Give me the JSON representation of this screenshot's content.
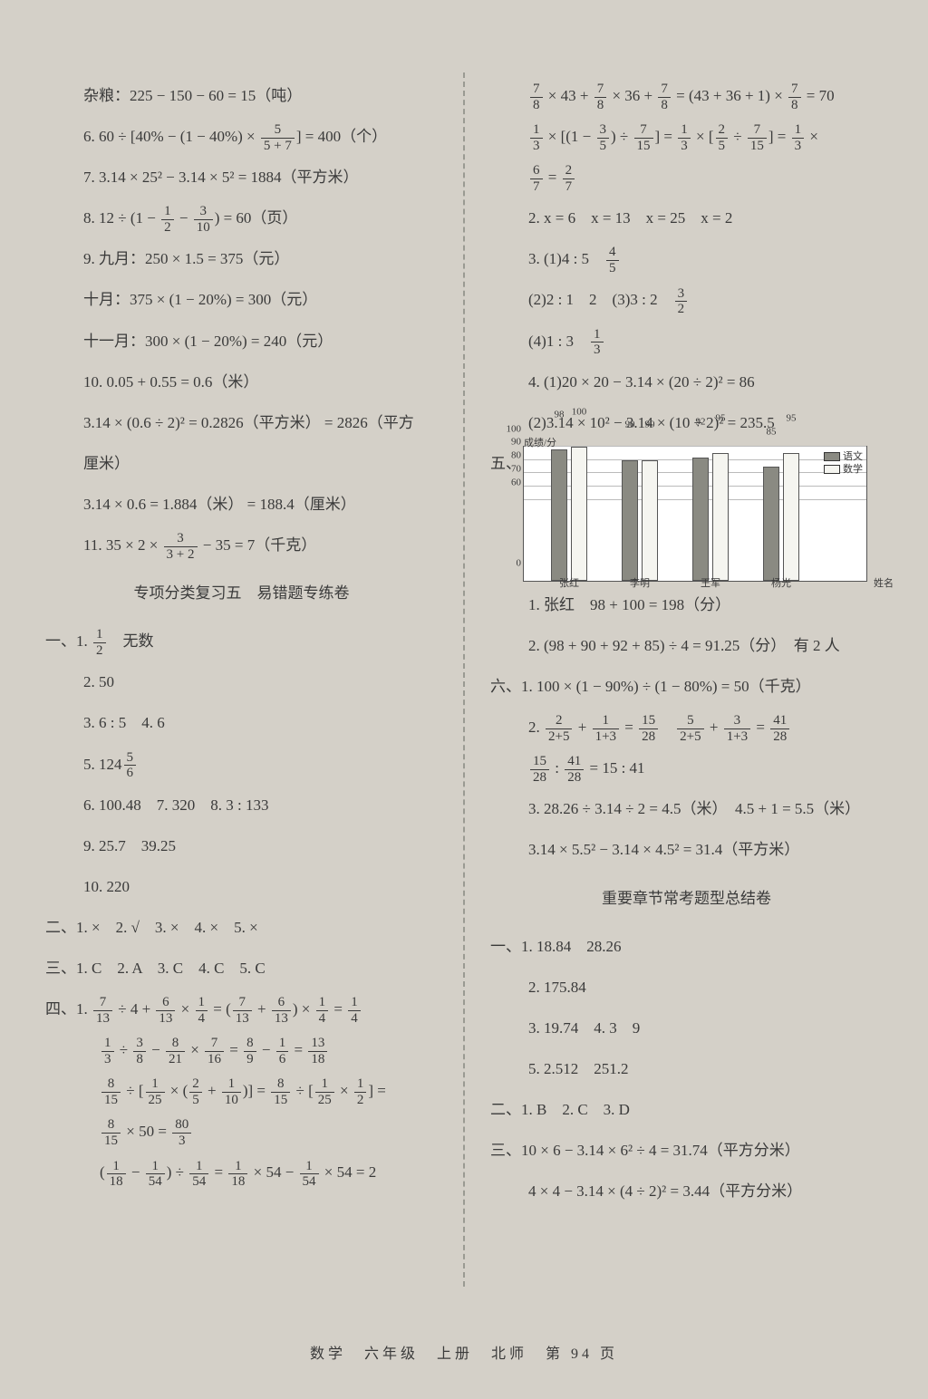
{
  "left": {
    "l01": "杂粮：225 − 150 − 60 = 15（吨）",
    "l02a": "6. 60 ÷ [40% − (1 − 40%) × ",
    "l02f": {
      "n": "5",
      "d": "5 + 7"
    },
    "l02b": "] = 400（个）",
    "l03": "7. 3.14 × 25² − 3.14 × 5² = 1884（平方米）",
    "l04a": "8. 12 ÷ (1 − ",
    "l04f1": {
      "n": "1",
      "d": "2"
    },
    "l04m": " − ",
    "l04f2": {
      "n": "3",
      "d": "10"
    },
    "l04b": ") = 60（页）",
    "l05": "9. 九月：250 × 1.5 = 375（元）",
    "l06": "十月：375 × (1 − 20%) = 300（元）",
    "l07": "十一月：300 × (1 − 20%) = 240（元）",
    "l08": "10. 0.05 + 0.55 = 0.6（米）",
    "l09": "3.14 × (0.6 ÷ 2)² = 0.2826（平方米） = 2826（平方",
    "l09b": "厘米）",
    "l10": "3.14 × 0.6 = 1.884（米） = 188.4（厘米）",
    "l11a": "11. 35 × 2 × ",
    "l11f": {
      "n": "3",
      "d": "3 + 2"
    },
    "l11b": " − 35 = 7（千克）",
    "title1": "专项分类复习五　易错题专练卷",
    "s1a": "一、1. ",
    "s1f": {
      "n": "1",
      "d": "2"
    },
    "s1b": "　无数",
    "s2": "2. 50",
    "s3": "3. 6 : 5　4. 6",
    "s5a": "5. 124",
    "s5f": {
      "n": "5",
      "d": "6"
    },
    "s6": "6. 100.48　7. 320　8. 3 : 133",
    "s9": "9. 25.7　39.25",
    "s10": "10. 220",
    "r2": "二、1. ×　2. √　3. ×　4. ×　5. ×",
    "r3": "三、1. C　2. A　3. C　4. C　5. C",
    "r4a": "四、1. ",
    "r4f1": {
      "n": "7",
      "d": "13"
    },
    "r4m1": " ÷ 4 + ",
    "r4f2": {
      "n": "6",
      "d": "13"
    },
    "r4m2": " × ",
    "r4f3": {
      "n": "1",
      "d": "4"
    },
    "r4m3": " = (",
    "r4f4": {
      "n": "7",
      "d": "13"
    },
    "r4m4": " + ",
    "r4f5": {
      "n": "6",
      "d": "13"
    },
    "r4m5": ") × ",
    "r4f6": {
      "n": "1",
      "d": "4"
    },
    "r4m6": " = ",
    "r4f7": {
      "n": "1",
      "d": "4"
    },
    "r5f1": {
      "n": "1",
      "d": "3"
    },
    "r5m1": " ÷ ",
    "r5f2": {
      "n": "3",
      "d": "8"
    },
    "r5m2": " − ",
    "r5f3": {
      "n": "8",
      "d": "21"
    },
    "r5m3": " × ",
    "r5f4": {
      "n": "7",
      "d": "16"
    },
    "r5m4": " = ",
    "r5f5": {
      "n": "8",
      "d": "9"
    },
    "r5m5": " − ",
    "r5f6": {
      "n": "1",
      "d": "6"
    },
    "r5m6": " = ",
    "r5f7": {
      "n": "13",
      "d": "18"
    },
    "r6f1": {
      "n": "8",
      "d": "15"
    },
    "r6m1": " ÷ [",
    "r6f2": {
      "n": "1",
      "d": "25"
    },
    "r6m2": " × (",
    "r6f3": {
      "n": "2",
      "d": "5"
    },
    "r6m3": " + ",
    "r6f4": {
      "n": "1",
      "d": "10"
    },
    "r6m4": ")] = ",
    "r6f5": {
      "n": "8",
      "d": "15"
    },
    "r6m5": " ÷ [",
    "r6f6": {
      "n": "1",
      "d": "25"
    },
    "r6m6": " × ",
    "r6f7": {
      "n": "1",
      "d": "2"
    },
    "r6m7": "] =",
    "r7f1": {
      "n": "8",
      "d": "15"
    },
    "r7m1": " × 50 = ",
    "r7f2": {
      "n": "80",
      "d": "3"
    },
    "r8m0": "(",
    "r8f1": {
      "n": "1",
      "d": "18"
    },
    "r8m1": " − ",
    "r8f2": {
      "n": "1",
      "d": "54"
    },
    "r8m2": ") ÷ ",
    "r8f3": {
      "n": "1",
      "d": "54"
    },
    "r8m3": " = ",
    "r8f4": {
      "n": "1",
      "d": "18"
    },
    "r8m4": " × 54 − ",
    "r8f5": {
      "n": "1",
      "d": "54"
    },
    "r8m5": " × 54 = 2"
  },
  "right": {
    "q1f1": {
      "n": "7",
      "d": "8"
    },
    "q1m1": " × 43 + ",
    "q1f2": {
      "n": "7",
      "d": "8"
    },
    "q1m2": " × 36 + ",
    "q1f3": {
      "n": "7",
      "d": "8"
    },
    "q1m3": " = (43 + 36 + 1) × ",
    "q1f4": {
      "n": "7",
      "d": "8"
    },
    "q1m4": " = 70",
    "q2f1": {
      "n": "1",
      "d": "3"
    },
    "q2m1": " × [(1 − ",
    "q2f2": {
      "n": "3",
      "d": "5"
    },
    "q2m2": ") ÷ ",
    "q2f3": {
      "n": "7",
      "d": "15"
    },
    "q2m3": "] = ",
    "q2f4": {
      "n": "1",
      "d": "3"
    },
    "q2m4": " × [",
    "q2f5": {
      "n": "2",
      "d": "5"
    },
    "q2m5": " ÷ ",
    "q2f6": {
      "n": "7",
      "d": "15"
    },
    "q2m6": "] = ",
    "q2f7": {
      "n": "1",
      "d": "3"
    },
    "q2m7": " ×",
    "q3f1": {
      "n": "6",
      "d": "7"
    },
    "q3m1": " = ",
    "q3f2": {
      "n": "2",
      "d": "7"
    },
    "q4": "2. x = 6　x = 13　x = 25　x = 2",
    "q5a": "3. (1)4 : 5　",
    "q5f": {
      "n": "4",
      "d": "5"
    },
    "q6a": "(2)2 : 1　2　(3)3 : 2　",
    "q6f": {
      "n": "3",
      "d": "2"
    },
    "q7a": "(4)1 : 3　",
    "q7f": {
      "n": "1",
      "d": "3"
    },
    "q8": "4. (1)20 × 20 − 3.14 × (20 ÷ 2)² = 86",
    "q9": "(2)3.14 × 10² − 3.14 × (10 ÷ 2)² = 235.5",
    "chart": {
      "ylabel": "成绩/分",
      "xlabel": "姓名",
      "ymin": 0,
      "ymax": 100,
      "ystep": 10,
      "cats": [
        "张红",
        "李明",
        "王军",
        "杨光"
      ],
      "series": [
        {
          "name": "语文",
          "color": "#8a8a82",
          "values": [
            98,
            90,
            92,
            85
          ]
        },
        {
          "name": "数学",
          "color": "#f5f5f0",
          "values": [
            100,
            90,
            95,
            95
          ]
        }
      ],
      "grid": "#bbbbbb",
      "border": "#555555",
      "bg": "#ffffff",
      "barw": 18,
      "group_gap": 78,
      "inner_gap": 4,
      "left_pad": 30
    },
    "five": "五、",
    "c1": "1. 张红　98 + 100 = 198（分）",
    "c2": "2. (98 + 90 + 92 + 85) ÷ 4 = 91.25（分）　有 2 人",
    "c3": "六、1. 100 × (1 − 90%) ÷ (1 − 80%) = 50（千克）",
    "c4a": "2. ",
    "c4f1": {
      "n": "2",
      "d": "2+5"
    },
    "c4m1": " + ",
    "c4f2": {
      "n": "1",
      "d": "1+3"
    },
    "c4m2": " = ",
    "c4f3": {
      "n": "15",
      "d": "28"
    },
    "c4m3": "　",
    "c4f4": {
      "n": "5",
      "d": "2+5"
    },
    "c4m4": " + ",
    "c4f5": {
      "n": "3",
      "d": "1+3"
    },
    "c4m5": " = ",
    "c4f6": {
      "n": "41",
      "d": "28"
    },
    "c5f1": {
      "n": "15",
      "d": "28"
    },
    "c5m1": " : ",
    "c5f2": {
      "n": "41",
      "d": "28"
    },
    "c5m2": " = 15 : 41",
    "c6": "3. 28.26 ÷ 3.14 ÷ 2 = 4.5（米）　4.5 + 1 = 5.5（米）",
    "c7": "3.14 × 5.5² − 3.14 × 4.5² = 31.4（平方米）",
    "title2": "重要章节常考题型总结卷",
    "d1": "一、1. 18.84　28.26",
    "d2": "2. 175.84",
    "d3": "3. 19.74　4. 3　9",
    "d5": "5. 2.512　251.2",
    "e2": "二、1. B　2. C　3. D",
    "e3": "三、10 × 6 − 3.14 × 6² ÷ 4 = 31.74（平方分米）",
    "e4": "4 × 4 − 3.14 × (4 ÷ 2)² = 3.44（平方分米）"
  },
  "footer": "数学　六年级　上册　北师　第 94 页"
}
